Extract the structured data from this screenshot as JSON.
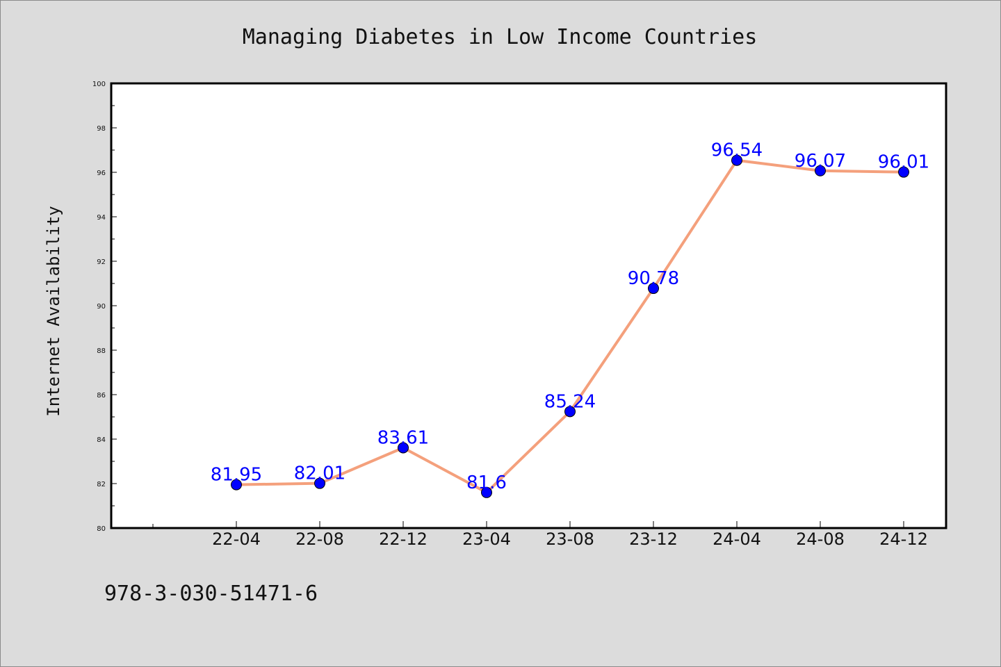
{
  "chart_data": {
    "type": "line",
    "title": "Managing Diabetes in Low Income Countries",
    "ylabel": "Internet Availability",
    "xlabel": "",
    "categories": [
      "22-04",
      "22-08",
      "22-12",
      "23-04",
      "23-08",
      "23-12",
      "24-04",
      "24-08",
      "24-12"
    ],
    "values": [
      81.95,
      82.01,
      83.61,
      81.6,
      85.24,
      90.78,
      96.54,
      96.07,
      96.01
    ],
    "data_labels": [
      "81.95",
      "82.01",
      "83.61",
      "81.6",
      "85.24",
      "90.78",
      "96.54",
      "96.07",
      "96.01"
    ],
    "ylim": [
      80,
      100
    ],
    "yticks": [
      "80",
      "82",
      "84",
      "86",
      "88",
      "90",
      "92",
      "94",
      "96",
      "98",
      "100"
    ],
    "grid": false,
    "line_color": "#f4a07c",
    "marker_color": "#0000ff",
    "label_color": "#0000ff"
  },
  "footer": {
    "isbn": "978-3-030-51471-6"
  }
}
